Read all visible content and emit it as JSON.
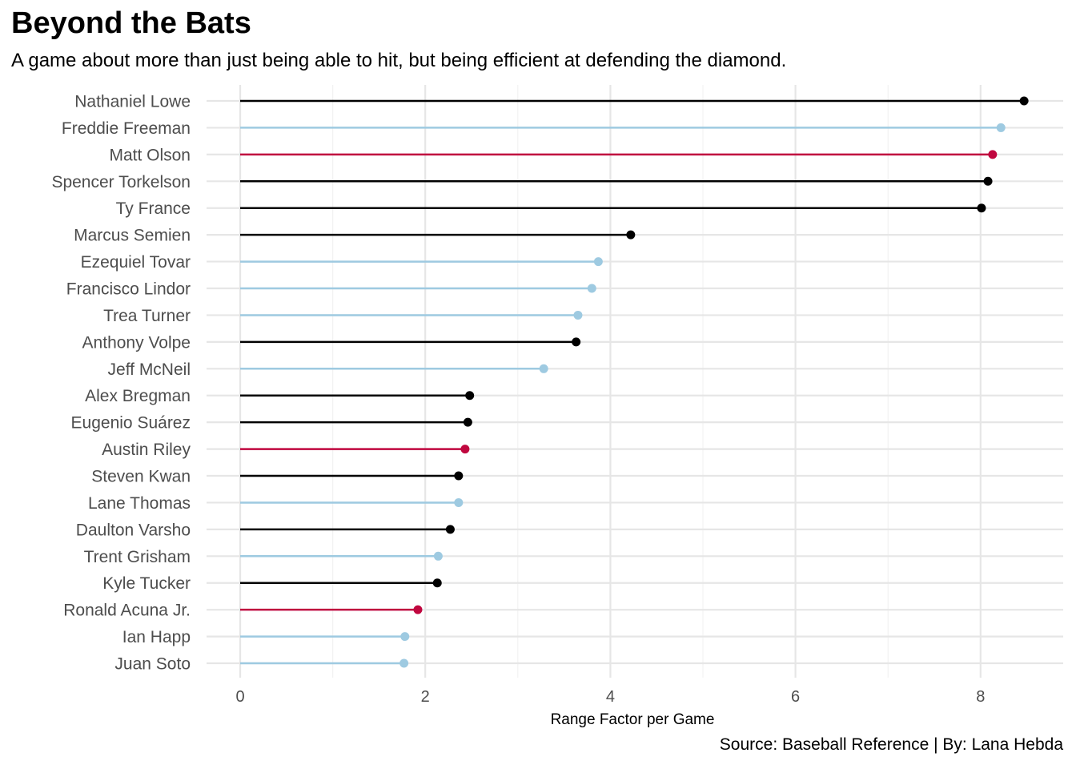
{
  "chart_data": {
    "type": "lollipop",
    "title": "Beyond the Bats",
    "subtitle": "A game about more than just being able to hit, but being efficient at defending the diamond.",
    "xlabel": "Range Factor per Game",
    "ylabel": "",
    "caption": "Source: Baseball Reference | By: Lana Hebda",
    "xlim": [
      0,
      8.8
    ],
    "x_ticks": [
      0,
      2,
      4,
      6,
      8
    ],
    "grid": true,
    "legend": "none",
    "colors": {
      "black": "#000000",
      "lightblue": "#9ecae1",
      "crimson": "#c0073f"
    },
    "categories": [
      "Nathaniel Lowe",
      "Freddie Freeman",
      "Matt Olson",
      "Spencer Torkelson",
      "Ty France",
      "Marcus Semien",
      "Ezequiel Tovar",
      "Francisco Lindor",
      "Trea Turner",
      "Anthony Volpe",
      "Jeff McNeil",
      "Alex Bregman",
      "Eugenio Suárez",
      "Austin Riley",
      "Steven Kwan",
      "Lane Thomas",
      "Daulton Varsho",
      "Trent Grisham",
      "Kyle Tucker",
      "Ronald Acuna Jr.",
      "Ian Happ",
      "Juan Soto"
    ],
    "values": [
      8.47,
      8.22,
      8.13,
      8.08,
      8.01,
      4.22,
      3.87,
      3.8,
      3.65,
      3.63,
      3.28,
      2.48,
      2.46,
      2.43,
      2.36,
      2.36,
      2.27,
      2.14,
      2.13,
      1.92,
      1.78,
      1.77
    ],
    "color_keys": [
      "black",
      "lightblue",
      "crimson",
      "black",
      "black",
      "black",
      "lightblue",
      "lightblue",
      "lightblue",
      "black",
      "lightblue",
      "black",
      "black",
      "crimson",
      "black",
      "lightblue",
      "black",
      "lightblue",
      "black",
      "crimson",
      "lightblue",
      "lightblue"
    ]
  }
}
